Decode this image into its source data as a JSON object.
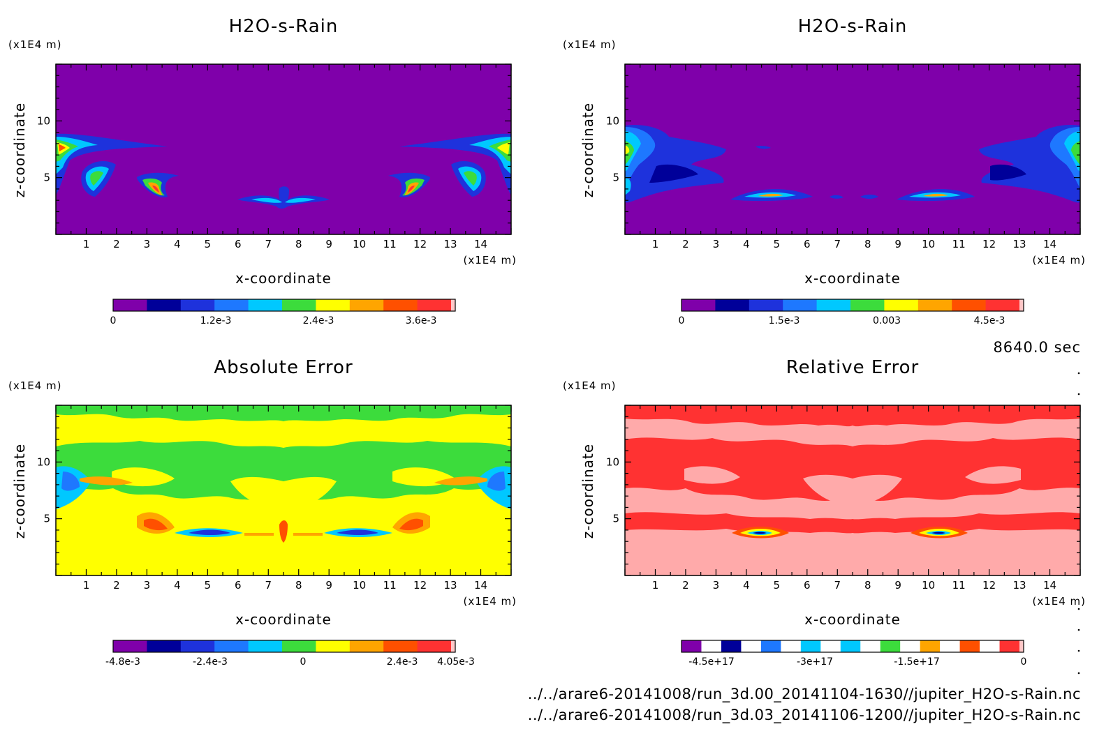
{
  "time_label": "8640.0 sec",
  "paths": [
    "../../arare6-20141008/run_3d.00_20141104-1630//jupiter_H2O-s-Rain.nc",
    "../../arare6-20141008/run_3d.03_20141106-1200//jupiter_H2O-s-Rain.nc"
  ],
  "chart_data": [
    {
      "type": "heatmap",
      "title": "H2O-s-Rain",
      "xlabel": "x-coordinate",
      "ylabel": "z-coordinate",
      "x_unit": "(x1E4 m)",
      "y_unit": "(x1E4 m)",
      "xlim": [
        0,
        15
      ],
      "ylim": [
        0,
        15
      ],
      "x_ticks": [
        "1",
        "2",
        "3",
        "4",
        "5",
        "6",
        "7",
        "8",
        "9",
        "10",
        "11",
        "12",
        "13",
        "14"
      ],
      "y_ticks": [
        "5",
        "10"
      ],
      "colorbar": {
        "colors": [
          "#7f00aa",
          "#000099",
          "#1e32dc",
          "#1e78ff",
          "#00c8ff",
          "#3cdc3c",
          "#ffff00",
          "#ffa500",
          "#ff5000",
          "#ff3232"
        ],
        "tick_labels": [
          "0",
          "1.2e-3",
          "2.4e-3",
          "3.6e-3"
        ]
      }
    },
    {
      "type": "heatmap",
      "title": "H2O-s-Rain",
      "xlabel": "x-coordinate",
      "ylabel": "z-coordinate",
      "x_unit": "(x1E4 m)",
      "y_unit": "(x1E4 m)",
      "xlim": [
        0,
        15
      ],
      "ylim": [
        0,
        15
      ],
      "x_ticks": [
        "1",
        "2",
        "3",
        "4",
        "5",
        "6",
        "7",
        "8",
        "9",
        "10",
        "11",
        "12",
        "13",
        "14"
      ],
      "y_ticks": [
        "5",
        "10"
      ],
      "colorbar": {
        "colors": [
          "#7f00aa",
          "#000099",
          "#1e32dc",
          "#1e78ff",
          "#00c8ff",
          "#3cdc3c",
          "#ffff00",
          "#ffa500",
          "#ff5000",
          "#ff3232"
        ],
        "tick_labels": [
          "0",
          "1.5e-3",
          "0.003",
          "4.5e-3"
        ]
      }
    },
    {
      "type": "heatmap",
      "title": "Absolute Error",
      "xlabel": "x-coordinate",
      "ylabel": "z-coordinate",
      "x_unit": "(x1E4 m)",
      "y_unit": "(x1E4 m)",
      "xlim": [
        0,
        15
      ],
      "ylim": [
        0,
        15
      ],
      "x_ticks": [
        "1",
        "2",
        "3",
        "4",
        "5",
        "6",
        "7",
        "8",
        "9",
        "10",
        "11",
        "12",
        "13",
        "14"
      ],
      "y_ticks": [
        "5",
        "10"
      ],
      "colorbar": {
        "colors": [
          "#7f00aa",
          "#000099",
          "#1e32dc",
          "#1e78ff",
          "#00c8ff",
          "#3cdc3c",
          "#ffff00",
          "#ffa500",
          "#ff5000",
          "#ff3232"
        ],
        "tick_labels": [
          "-4.8e-3",
          "-2.4e-3",
          "0",
          "2.4e-3",
          "4.05e-3"
        ]
      }
    },
    {
      "type": "heatmap",
      "title": "Relative Error",
      "xlabel": "x-coordinate",
      "ylabel": "z-coordinate",
      "x_unit": "(x1E4 m)",
      "y_unit": "(x1E4 m)",
      "xlim": [
        0,
        15
      ],
      "ylim": [
        0,
        15
      ],
      "x_ticks": [
        "1",
        "2",
        "3",
        "4",
        "5",
        "6",
        "7",
        "8",
        "9",
        "10",
        "11",
        "12",
        "13",
        "14"
      ],
      "y_ticks": [
        "5",
        "10"
      ],
      "colorbar": {
        "colors": [
          "#7f00aa",
          "#ffffff",
          "#000099",
          "#ffffff",
          "#1e78ff",
          "#ffffff",
          "#00c8ff",
          "#ffffff",
          "#00c8ff",
          "#ffffff",
          "#3cdc3c",
          "#ffffff",
          "#ffa500",
          "#ffffff",
          "#ff5000",
          "#ffffff",
          "#ff3232"
        ],
        "tick_labels": [
          "-4.5e+17",
          "-3e+17",
          "-1.5e+17",
          "0"
        ]
      }
    }
  ]
}
